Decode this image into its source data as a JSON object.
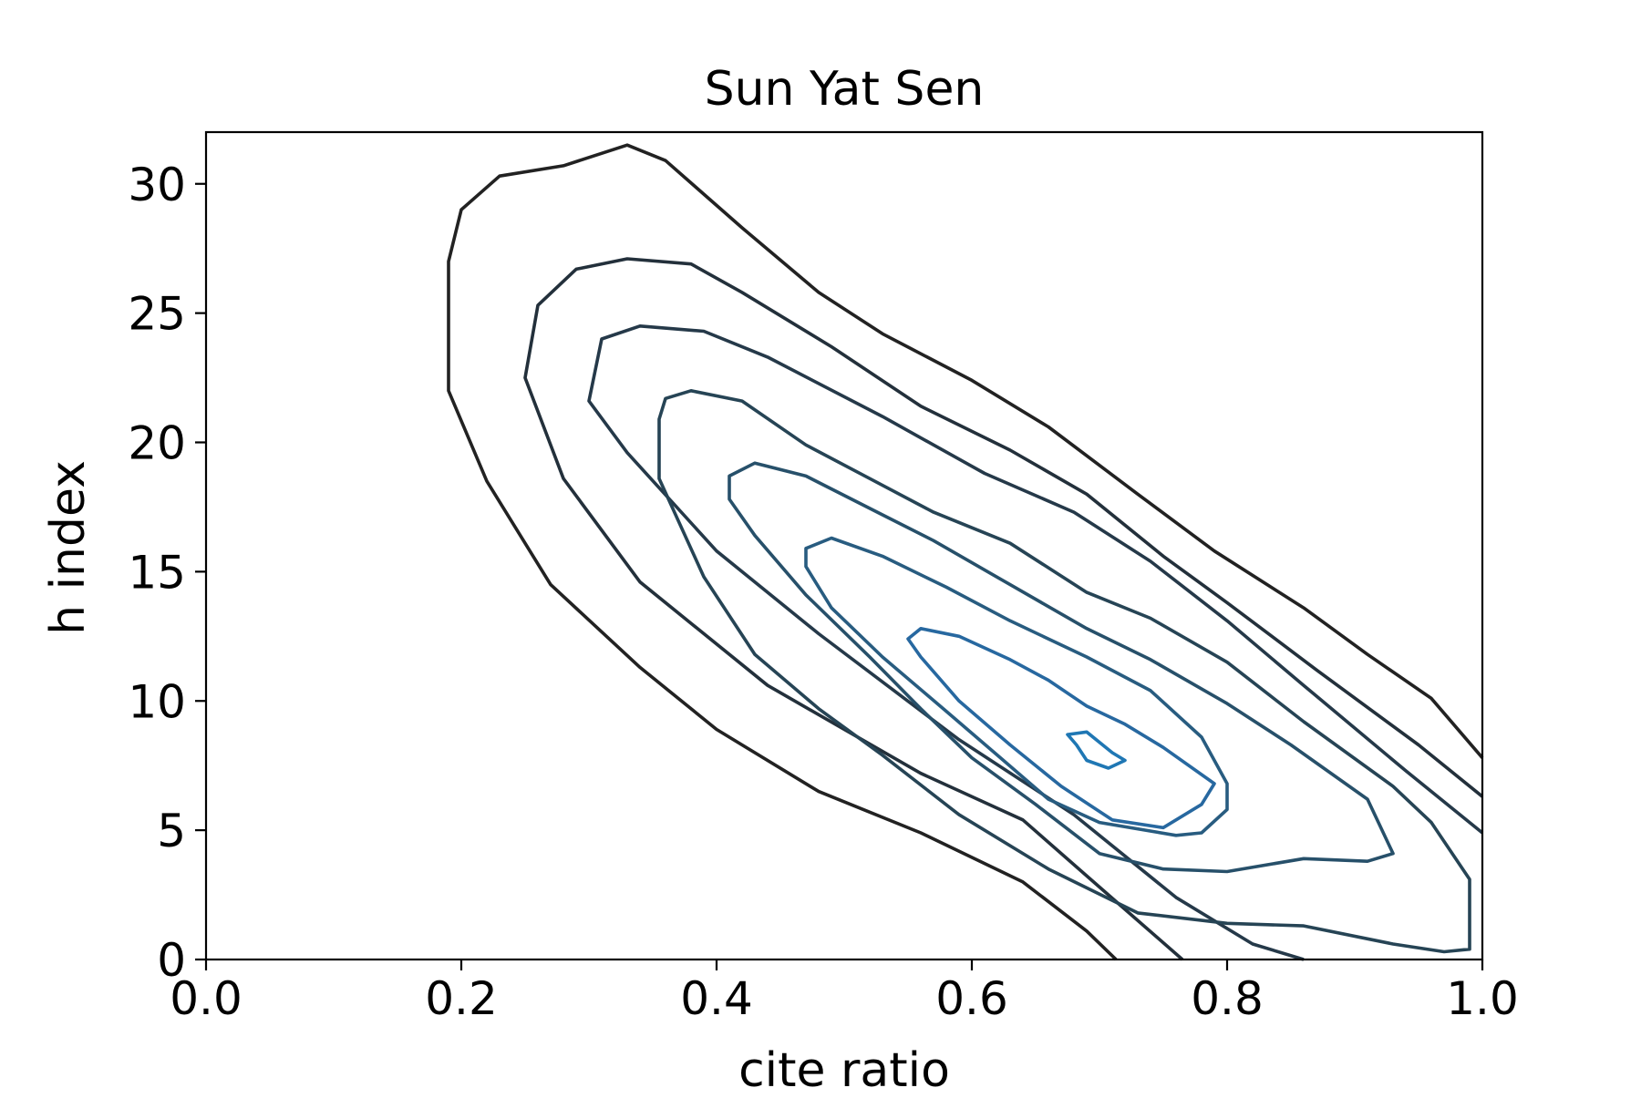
{
  "chart_data": {
    "type": "contour",
    "title": "Sun Yat Sen",
    "xlabel": "cite ratio",
    "ylabel": "h index",
    "xlim": [
      0.0,
      1.0
    ],
    "ylim": [
      0,
      32
    ],
    "xticks": [
      0.0,
      0.2,
      0.4,
      0.6,
      0.8,
      1.0
    ],
    "xtick_labels": [
      "0.0",
      "0.2",
      "0.4",
      "0.6",
      "0.8",
      "1.0"
    ],
    "yticks": [
      0,
      5,
      10,
      15,
      20,
      25,
      30
    ],
    "ytick_labels": [
      "0",
      "5",
      "10",
      "15",
      "20",
      "25",
      "30"
    ],
    "grid": false,
    "legend": "none",
    "colormap": "dark gray (outer) to blue (inner)",
    "contours": [
      {
        "level": 1,
        "color": "#222222",
        "closed": false,
        "points": [
          [
            0.713,
            0
          ],
          [
            0.69,
            1.1
          ],
          [
            0.64,
            3
          ],
          [
            0.56,
            4.9
          ],
          [
            0.48,
            6.5
          ],
          [
            0.4,
            8.9
          ],
          [
            0.34,
            11.3
          ],
          [
            0.27,
            14.5
          ],
          [
            0.22,
            18.5
          ],
          [
            0.19,
            22
          ],
          [
            0.19,
            27
          ],
          [
            0.2,
            29
          ],
          [
            0.23,
            30.3
          ],
          [
            0.28,
            30.7
          ],
          [
            0.33,
            31.5
          ],
          [
            0.36,
            30.9
          ],
          [
            0.42,
            28.3
          ],
          [
            0.48,
            25.8
          ],
          [
            0.53,
            24.2
          ],
          [
            0.6,
            22.4
          ],
          [
            0.66,
            20.6
          ],
          [
            0.73,
            18
          ],
          [
            0.79,
            15.8
          ],
          [
            0.86,
            13.6
          ],
          [
            0.91,
            11.8
          ],
          [
            0.96,
            10.1
          ],
          [
            1.0,
            7.8
          ]
        ]
      },
      {
        "level": 2,
        "color": "#23303b",
        "closed": false,
        "points": [
          [
            0.765,
            0
          ],
          [
            0.7,
            2.8
          ],
          [
            0.64,
            5.4
          ],
          [
            0.56,
            7.2
          ],
          [
            0.44,
            10.6
          ],
          [
            0.34,
            14.6
          ],
          [
            0.28,
            18.6
          ],
          [
            0.25,
            22.5
          ],
          [
            0.26,
            25.3
          ],
          [
            0.29,
            26.7
          ],
          [
            0.33,
            27.1
          ],
          [
            0.38,
            26.9
          ],
          [
            0.42,
            25.8
          ],
          [
            0.49,
            23.7
          ],
          [
            0.56,
            21.4
          ],
          [
            0.63,
            19.7
          ],
          [
            0.69,
            18
          ],
          [
            0.75,
            15.6
          ],
          [
            0.8,
            13.8
          ],
          [
            0.87,
            11.2
          ],
          [
            0.95,
            8.3
          ],
          [
            1.0,
            6.3
          ]
        ]
      },
      {
        "level": 3,
        "color": "#253949",
        "closed": false,
        "points": [
          [
            0.86,
            0
          ],
          [
            0.82,
            0.6
          ],
          [
            0.76,
            2.4
          ],
          [
            0.68,
            5.6
          ],
          [
            0.59,
            8.5
          ],
          [
            0.48,
            12.6
          ],
          [
            0.4,
            15.8
          ],
          [
            0.33,
            19.6
          ],
          [
            0.3,
            21.6
          ],
          [
            0.31,
            24
          ],
          [
            0.34,
            24.5
          ],
          [
            0.39,
            24.3
          ],
          [
            0.44,
            23.3
          ],
          [
            0.53,
            21
          ],
          [
            0.61,
            18.8
          ],
          [
            0.68,
            17.3
          ],
          [
            0.74,
            15.4
          ],
          [
            0.8,
            13.1
          ],
          [
            0.86,
            10.6
          ],
          [
            0.94,
            7.3
          ],
          [
            1.0,
            4.9
          ]
        ]
      },
      {
        "level": 4,
        "color": "#264455",
        "closed": true,
        "points": [
          [
            0.36,
            21.7
          ],
          [
            0.38,
            22
          ],
          [
            0.42,
            21.6
          ],
          [
            0.47,
            19.9
          ],
          [
            0.52,
            18.6
          ],
          [
            0.57,
            17.3
          ],
          [
            0.63,
            16.1
          ],
          [
            0.69,
            14.2
          ],
          [
            0.74,
            13.2
          ],
          [
            0.8,
            11.5
          ],
          [
            0.86,
            9.2
          ],
          [
            0.93,
            6.7
          ],
          [
            0.96,
            5.3
          ],
          [
            0.99,
            3.1
          ],
          [
            0.99,
            0.4
          ],
          [
            0.97,
            0.3
          ],
          [
            0.93,
            0.6
          ],
          [
            0.86,
            1.3
          ],
          [
            0.8,
            1.4
          ],
          [
            0.73,
            1.8
          ],
          [
            0.66,
            3.5
          ],
          [
            0.59,
            5.6
          ],
          [
            0.53,
            7.9
          ],
          [
            0.48,
            9.7
          ],
          [
            0.43,
            11.8
          ],
          [
            0.39,
            14.8
          ],
          [
            0.355,
            18.6
          ],
          [
            0.355,
            20.9
          ]
        ]
      },
      {
        "level": 5,
        "color": "#27506a",
        "closed": true,
        "points": [
          [
            0.41,
            18.7
          ],
          [
            0.43,
            19.2
          ],
          [
            0.47,
            18.7
          ],
          [
            0.53,
            17.2
          ],
          [
            0.57,
            16.2
          ],
          [
            0.63,
            14.5
          ],
          [
            0.69,
            12.8
          ],
          [
            0.74,
            11.6
          ],
          [
            0.8,
            9.9
          ],
          [
            0.85,
            8.3
          ],
          [
            0.91,
            6.2
          ],
          [
            0.93,
            4.1
          ],
          [
            0.91,
            3.8
          ],
          [
            0.86,
            3.9
          ],
          [
            0.8,
            3.4
          ],
          [
            0.75,
            3.5
          ],
          [
            0.7,
            4.1
          ],
          [
            0.65,
            6
          ],
          [
            0.6,
            7.8
          ],
          [
            0.56,
            9.7
          ],
          [
            0.52,
            11.7
          ],
          [
            0.47,
            14.1
          ],
          [
            0.43,
            16.4
          ],
          [
            0.41,
            17.8
          ]
        ]
      },
      {
        "level": 6,
        "color": "#285c80",
        "closed": true,
        "points": [
          [
            0.47,
            15.9
          ],
          [
            0.49,
            16.3
          ],
          [
            0.53,
            15.6
          ],
          [
            0.58,
            14.4
          ],
          [
            0.63,
            13.1
          ],
          [
            0.69,
            11.7
          ],
          [
            0.74,
            10.4
          ],
          [
            0.78,
            8.6
          ],
          [
            0.8,
            6.8
          ],
          [
            0.8,
            5.8
          ],
          [
            0.78,
            4.9
          ],
          [
            0.76,
            4.8
          ],
          [
            0.7,
            5.3
          ],
          [
            0.66,
            6.2
          ],
          [
            0.62,
            7.9
          ],
          [
            0.58,
            9.6
          ],
          [
            0.53,
            11.7
          ],
          [
            0.49,
            13.6
          ],
          [
            0.47,
            15.2
          ]
        ]
      },
      {
        "level": 7,
        "color": "#2768a0",
        "closed": true,
        "points": [
          [
            0.55,
            12.4
          ],
          [
            0.56,
            12.8
          ],
          [
            0.59,
            12.5
          ],
          [
            0.63,
            11.6
          ],
          [
            0.66,
            10.8
          ],
          [
            0.69,
            9.8
          ],
          [
            0.72,
            9.1
          ],
          [
            0.75,
            8.2
          ],
          [
            0.79,
            6.8
          ],
          [
            0.78,
            6
          ],
          [
            0.75,
            5.1
          ],
          [
            0.71,
            5.4
          ],
          [
            0.67,
            6.7
          ],
          [
            0.63,
            8.3
          ],
          [
            0.59,
            10
          ],
          [
            0.56,
            11.7
          ]
        ]
      },
      {
        "level": 8,
        "color": "#1f77b4",
        "closed": true,
        "points": [
          [
            0.675,
            8.7
          ],
          [
            0.69,
            8.8
          ],
          [
            0.71,
            8
          ],
          [
            0.72,
            7.7
          ],
          [
            0.707,
            7.4
          ],
          [
            0.69,
            7.7
          ],
          [
            0.682,
            8.3
          ]
        ]
      }
    ]
  }
}
